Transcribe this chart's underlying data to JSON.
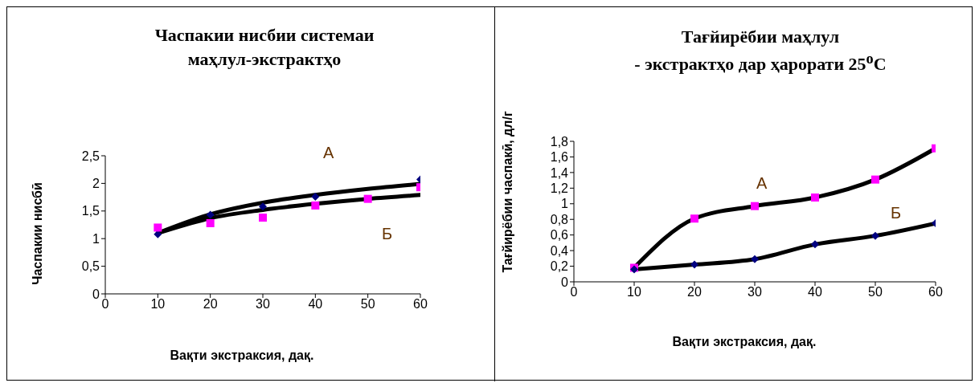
{
  "chart_data": [
    {
      "type": "scatter",
      "title": "Часпакии нисбии системаи\nмаҳлул-экстрактҳо",
      "xlabel": "Вақти экстраксия, дақ.",
      "ylabel": "Часпакии нисбӣ",
      "x": [
        10,
        20,
        30,
        40,
        50,
        60
      ],
      "series": [
        {
          "type": "scatter",
          "color": "#000080",
          "marker": "diamond",
          "values": [
            1.08,
            1.43,
            1.58,
            1.76,
            null,
            2.07
          ]
        },
        {
          "type": "scatter",
          "color": "#ff00ff",
          "marker": "square",
          "values": [
            1.2,
            1.28,
            1.38,
            1.6,
            1.72,
            1.93
          ]
        },
        {
          "type": "line",
          "color": "#000000",
          "marker": "none",
          "x": [
            10,
            20,
            30,
            40,
            50,
            60
          ],
          "values": [
            1.1,
            1.44,
            1.65,
            1.79,
            1.9,
            1.99
          ]
        },
        {
          "type": "line",
          "color": "#000000",
          "marker": "none",
          "x": [
            10,
            20,
            30,
            40,
            50,
            60
          ],
          "values": [
            1.1,
            1.37,
            1.52,
            1.63,
            1.72,
            1.79
          ]
        }
      ],
      "annotations": [
        "А",
        "Б"
      ],
      "xlim": [
        0,
        60
      ],
      "xticks": [
        0,
        10,
        20,
        30,
        40,
        50,
        60
      ],
      "ylim": [
        0,
        2.5
      ],
      "yticks": [
        0,
        {
          "value": 0.5,
          "label": "0,5"
        },
        1,
        {
          "value": 1.5,
          "label": "1,5"
        },
        2,
        {
          "value": 2.5,
          "label": "2,5"
        }
      ]
    },
    {
      "type": "scatter",
      "title": "Тағйирёбии маҳлул\n- экстрактҳо дар ҳарорати 25$^{o}$С",
      "xlabel": "Вақти экстраксия, дақ.",
      "ylabel": "Тағйирёбии часпакӣ, дл/г",
      "x": [
        10,
        20,
        30,
        40,
        50,
        60
      ],
      "series": [
        {
          "type": "line",
          "color": "#000000",
          "marker": "none",
          "values": [
            0.18,
            0.81,
            0.97,
            1.08,
            1.31,
            1.71
          ]
        },
        {
          "type": "line",
          "color": "#000000",
          "marker": "none",
          "values": [
            0.16,
            0.22,
            0.29,
            0.48,
            0.59,
            0.75
          ]
        },
        {
          "type": "scatter",
          "color": "#ff00ff",
          "marker": "square",
          "values": [
            0.18,
            0.81,
            0.97,
            1.08,
            1.31,
            1.71
          ]
        },
        {
          "type": "scatter",
          "color": "#000080",
          "marker": "diamond",
          "values": [
            0.16,
            0.22,
            0.29,
            0.48,
            0.59,
            0.75
          ]
        }
      ],
      "annotations": [
        "А",
        "Б"
      ],
      "xlim": [
        0,
        60
      ],
      "xticks": [
        0,
        10,
        20,
        30,
        40,
        50,
        60
      ],
      "ylim": [
        0,
        1.8
      ],
      "yticks": [
        0,
        {
          "value": 0.2,
          "label": "0,2"
        },
        {
          "value": 0.4,
          "label": "0,4"
        },
        {
          "value": 0.6,
          "label": "0,6"
        },
        {
          "value": 0.8,
          "label": "0,8"
        },
        1,
        {
          "value": 1.2,
          "label": "1,2"
        },
        {
          "value": 1.4,
          "label": "1,4"
        },
        {
          "value": 1.6,
          "label": "1,6"
        },
        {
          "value": 1.8,
          "label": "1,8"
        }
      ]
    }
  ]
}
